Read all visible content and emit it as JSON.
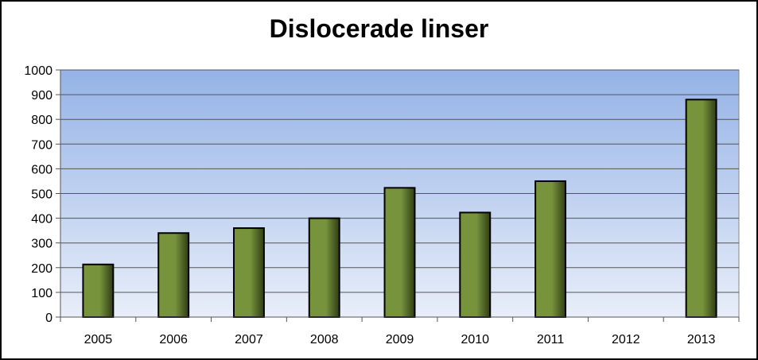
{
  "chart_data": {
    "type": "bar",
    "title": "Dislocerade linser",
    "xlabel": "",
    "ylabel": "",
    "categories": [
      "2005",
      "2006",
      "2007",
      "2008",
      "2009",
      "2010",
      "2011",
      "2012",
      "2013"
    ],
    "values": [
      213,
      340,
      360,
      400,
      523,
      423,
      550,
      null,
      880
    ],
    "ylim": [
      0,
      1000
    ],
    "yticks": [
      "0",
      "100",
      "200",
      "300",
      "400",
      "500",
      "600",
      "700",
      "800",
      "900",
      "1000"
    ],
    "grid": true,
    "legend": "none",
    "colors": {
      "bar": "#77933c",
      "bar_dark": "#2f3d15",
      "plot_top": "#95b3e7",
      "plot_bottom": "#e8eef9",
      "gridline": "#555555"
    }
  }
}
